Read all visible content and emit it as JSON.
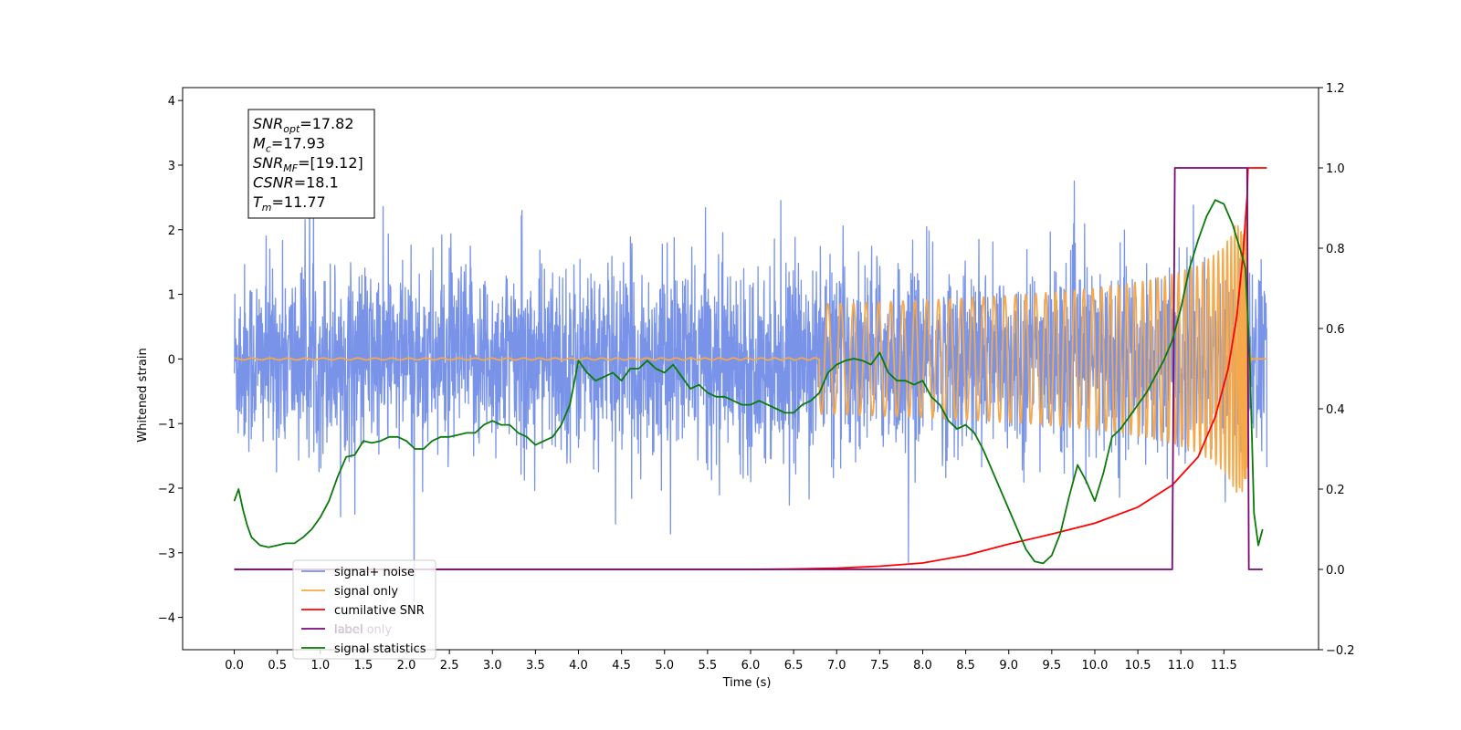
{
  "chart_data": {
    "type": "line",
    "xlabel": "Time (s)",
    "ylabel_left": "Whitened strain",
    "xlim": [
      -0.6,
      12.6
    ],
    "ylim_left": [
      -4.5,
      4.2
    ],
    "ylim_right": [
      -0.2,
      1.2
    ],
    "x_ticks": [
      "0.0",
      "0.5",
      "1.0",
      "1.5",
      "2.0",
      "2.5",
      "3.0",
      "3.5",
      "4.0",
      "4.5",
      "5.0",
      "5.5",
      "6.0",
      "6.5",
      "7.0",
      "7.5",
      "8.0",
      "8.5",
      "9.0",
      "9.5",
      "10.0",
      "10.5",
      "11.0",
      "11.5"
    ],
    "y_ticks_left": [
      "4",
      "3",
      "2",
      "1",
      "0",
      "−1",
      "−2",
      "−3",
      "−4"
    ],
    "y_ticks_right": [
      "1.2",
      "1.0",
      "0.8",
      "0.6",
      "0.4",
      "0.2",
      "0.0",
      "−0.2"
    ],
    "grid": false,
    "legend_position": "lower-left",
    "stats_box": [
      {
        "base": "SNR",
        "sub": "opt",
        "value": "=17.82"
      },
      {
        "base": "M",
        "sub": "c",
        "value": "=17.93"
      },
      {
        "base": "SNR",
        "sub": "MF",
        "value": "=[19.12]"
      },
      {
        "base": "CSNR",
        "sub": "",
        "value": "=18.1"
      },
      {
        "base": "T",
        "sub": "m",
        "value": "=11.77"
      }
    ],
    "series": [
      {
        "name": "signal+ noise",
        "axis": "left",
        "color": "#7893e8",
        "description_kind": "noise",
        "x_range": [
          0.0,
          12.0
        ],
        "noise_std": 0.72
      },
      {
        "name": "signal only",
        "axis": "left",
        "color": "#f5a94a",
        "description_kind": "chirp",
        "x_range": [
          0.0,
          12.0
        ],
        "merger_time": 11.77,
        "peak_amplitude": 2.1
      },
      {
        "name": "cumilative SNR",
        "axis": "right",
        "color": "#ff0000",
        "x": [
          0.0,
          6.0,
          6.5,
          7.0,
          7.5,
          8.0,
          8.5,
          9.0,
          9.5,
          10.0,
          10.5,
          10.9,
          11.2,
          11.4,
          11.55,
          11.65,
          11.72,
          11.77,
          11.78,
          12.0
        ],
        "y": [
          0.0,
          0.0,
          0.001,
          0.003,
          0.008,
          0.016,
          0.035,
          0.063,
          0.088,
          0.115,
          0.155,
          0.21,
          0.28,
          0.38,
          0.5,
          0.63,
          0.78,
          0.93,
          1.0,
          1.0
        ]
      },
      {
        "name": "label",
        "axis": "right",
        "color": "#7a0a7a",
        "x": [
          0.0,
          10.9,
          10.93,
          11.77,
          11.79,
          11.95
        ],
        "y": [
          0.0,
          0.0,
          1.0,
          1.0,
          0.0,
          0.0
        ]
      },
      {
        "name": "label only",
        "axis": "right",
        "color": "#e0d0e0",
        "hidden_in_plot": true
      },
      {
        "name": "signal statistics",
        "axis": "right",
        "color": "#0a7a0a",
        "x": [
          0.0,
          0.05,
          0.1,
          0.15,
          0.2,
          0.3,
          0.4,
          0.5,
          0.6,
          0.7,
          0.8,
          0.9,
          1.0,
          1.1,
          1.2,
          1.3,
          1.4,
          1.5,
          1.6,
          1.7,
          1.8,
          1.9,
          2.0,
          2.1,
          2.2,
          2.3,
          2.4,
          2.5,
          2.6,
          2.7,
          2.8,
          2.9,
          3.0,
          3.1,
          3.2,
          3.3,
          3.4,
          3.5,
          3.6,
          3.7,
          3.8,
          3.9,
          4.0,
          4.1,
          4.2,
          4.3,
          4.4,
          4.5,
          4.6,
          4.7,
          4.8,
          4.9,
          5.0,
          5.1,
          5.2,
          5.3,
          5.4,
          5.5,
          5.6,
          5.7,
          5.8,
          5.9,
          6.0,
          6.1,
          6.2,
          6.3,
          6.4,
          6.5,
          6.6,
          6.7,
          6.8,
          6.9,
          7.0,
          7.1,
          7.2,
          7.3,
          7.4,
          7.5,
          7.6,
          7.7,
          7.8,
          7.9,
          8.0,
          8.1,
          8.2,
          8.3,
          8.4,
          8.5,
          8.6,
          8.7,
          8.8,
          8.9,
          9.0,
          9.1,
          9.2,
          9.3,
          9.4,
          9.5,
          9.6,
          9.7,
          9.8,
          9.9,
          10.0,
          10.1,
          10.2,
          10.3,
          10.4,
          10.5,
          10.6,
          10.7,
          10.8,
          10.9,
          11.0,
          11.1,
          11.2,
          11.3,
          11.4,
          11.5,
          11.6,
          11.7,
          11.75,
          11.8,
          11.85,
          11.9,
          11.95
        ],
        "y": [
          0.17,
          0.2,
          0.15,
          0.11,
          0.08,
          0.06,
          0.055,
          0.06,
          0.065,
          0.065,
          0.08,
          0.1,
          0.13,
          0.17,
          0.23,
          0.28,
          0.285,
          0.32,
          0.315,
          0.32,
          0.33,
          0.33,
          0.32,
          0.3,
          0.3,
          0.32,
          0.33,
          0.33,
          0.335,
          0.34,
          0.34,
          0.36,
          0.37,
          0.36,
          0.36,
          0.34,
          0.33,
          0.31,
          0.32,
          0.33,
          0.36,
          0.41,
          0.52,
          0.49,
          0.47,
          0.48,
          0.49,
          0.47,
          0.5,
          0.5,
          0.52,
          0.5,
          0.49,
          0.51,
          0.48,
          0.45,
          0.46,
          0.44,
          0.43,
          0.43,
          0.42,
          0.41,
          0.41,
          0.42,
          0.41,
          0.4,
          0.39,
          0.39,
          0.41,
          0.42,
          0.44,
          0.49,
          0.51,
          0.52,
          0.525,
          0.52,
          0.51,
          0.54,
          0.49,
          0.47,
          0.47,
          0.46,
          0.47,
          0.43,
          0.41,
          0.37,
          0.35,
          0.36,
          0.34,
          0.3,
          0.25,
          0.2,
          0.15,
          0.1,
          0.05,
          0.02,
          0.015,
          0.035,
          0.09,
          0.18,
          0.26,
          0.22,
          0.17,
          0.24,
          0.33,
          0.35,
          0.38,
          0.41,
          0.44,
          0.48,
          0.52,
          0.57,
          0.65,
          0.75,
          0.82,
          0.88,
          0.92,
          0.91,
          0.86,
          0.79,
          0.75,
          0.53,
          0.14,
          0.06,
          0.1
        ]
      }
    ]
  }
}
